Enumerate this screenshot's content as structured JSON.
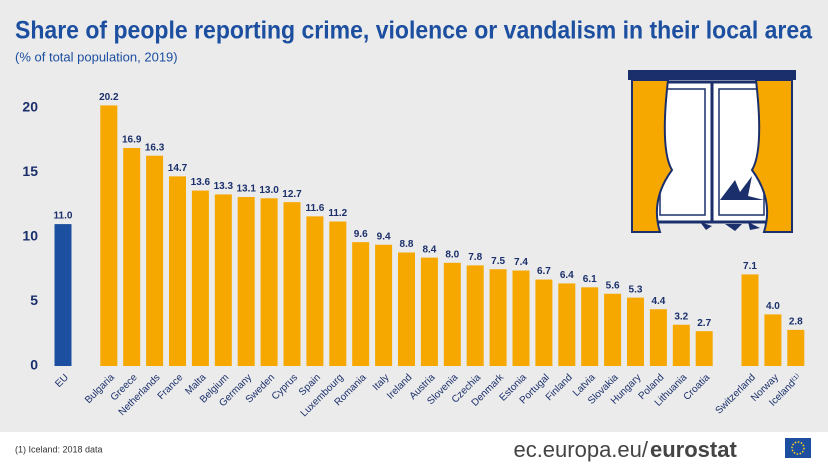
{
  "chart_data": {
    "type": "bar",
    "title": "Share of people reporting crime, violence or vandalism in their local area",
    "subtitle": "(% of total population, 2019)",
    "categories": [
      "EU",
      null,
      "Bulgaria",
      "Greece",
      "Netherlands",
      "France",
      "Malta",
      "Belgium",
      "Germany",
      "Sweden",
      "Cyprus",
      "Spain",
      "Luxembourg",
      "Romania",
      "Italy",
      "Ireland",
      "Austria",
      "Slovenia",
      "Czechia",
      "Denmark",
      "Estonia",
      "Portugal",
      "Finland",
      "Latvia",
      "Slovakia",
      "Hungary",
      "Poland",
      "Lithuania",
      "Croatia",
      null,
      "Switzerland",
      "Norway",
      "Iceland⁽¹⁾"
    ],
    "values": [
      11.0,
      null,
      20.2,
      16.9,
      16.3,
      14.7,
      13.6,
      13.3,
      13.1,
      13.0,
      12.7,
      11.6,
      11.2,
      9.6,
      9.4,
      8.8,
      8.4,
      8.0,
      7.8,
      7.5,
      7.4,
      6.7,
      6.4,
      6.1,
      5.6,
      5.3,
      4.4,
      3.2,
      2.7,
      null,
      7.1,
      4.0,
      2.8
    ],
    "value_labels": [
      "11.0",
      null,
      "20.2",
      "16.9",
      "16.3",
      "14.7",
      "13.6",
      "13.3",
      "13.1",
      "13.0",
      "12.7",
      "11.6",
      "11.2",
      "9.6",
      "9.4",
      "8.8",
      "8.4",
      "8.0",
      "7.8",
      "7.5",
      "7.4",
      "6.7",
      "6.4",
      "6.1",
      "5.6",
      "5.3",
      "4.4",
      "3.2",
      "2.7",
      null,
      "7.1",
      "4.0",
      "2.8"
    ],
    "color": "#f6a800",
    "colors": [
      "#1d4fa0",
      null,
      "#f6a800",
      "#f6a800",
      "#f6a800",
      "#f6a800",
      "#f6a800",
      "#f6a800",
      "#f6a800",
      "#f6a800",
      "#f6a800",
      "#f6a800",
      "#f6a800",
      "#f6a800",
      "#f6a800",
      "#f6a800",
      "#f6a800",
      "#f6a800",
      "#f6a800",
      "#f6a800",
      "#f6a800",
      "#f6a800",
      "#f6a800",
      "#f6a800",
      "#f6a800",
      "#f6a800",
      "#f6a800",
      "#f6a800",
      "#f6a800",
      null,
      "#f6a800",
      "#f6a800",
      "#f6a800"
    ],
    "ylim": [
      0,
      22
    ],
    "yticks": [
      0,
      5,
      10,
      15,
      20
    ],
    "grid": false,
    "footnote": "(1) Iceland: 2018 data",
    "source": "ec.europa.eu/",
    "source_brand": "eurostat"
  }
}
